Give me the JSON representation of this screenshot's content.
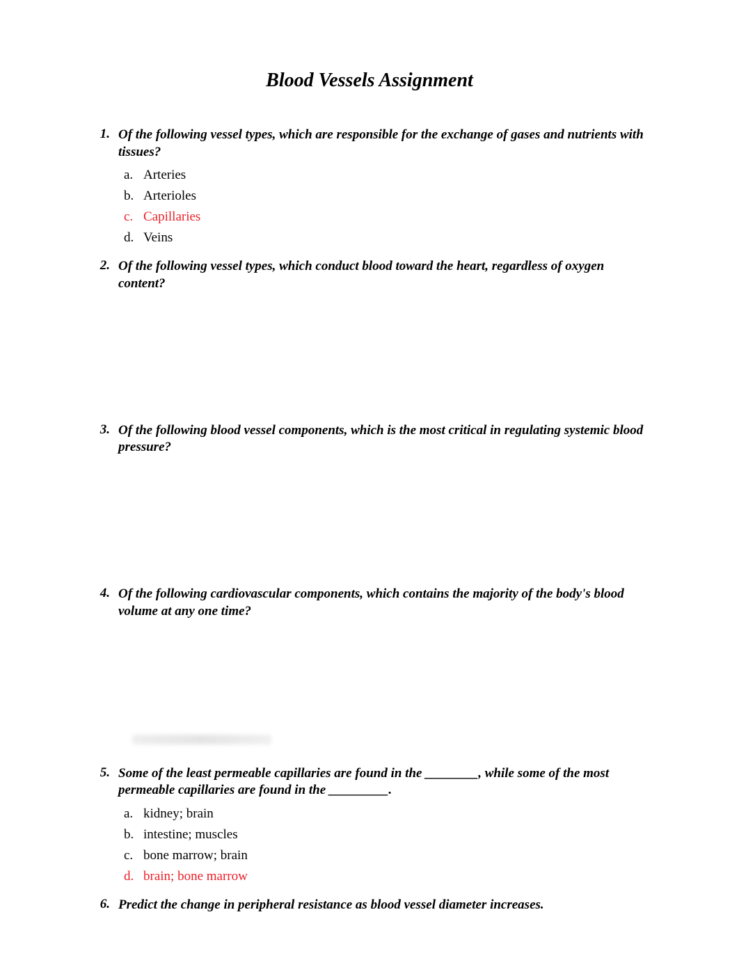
{
  "title": "Blood Vessels Assignment",
  "questions": [
    {
      "number": "1.",
      "text": "Of the following vessel types, which are responsible for the exchange of gases and nutrients with tissues?",
      "options": [
        {
          "letter": "a.",
          "text": "Arteries",
          "isAnswer": false
        },
        {
          "letter": "b.",
          "text": "Arterioles",
          "isAnswer": false
        },
        {
          "letter": "c.",
          "text": "Capillaries",
          "isAnswer": true
        },
        {
          "letter": "d.",
          "text": "Veins",
          "isAnswer": false
        }
      ],
      "spacerAfter": "small"
    },
    {
      "number": "2.",
      "text": "Of the following vessel types, which conduct blood toward the heart, regardless of oxygen content?",
      "options": [],
      "spacerAfter": "large"
    },
    {
      "number": "3.",
      "text": "Of the following blood vessel components, which is the most critical in regulating systemic blood pressure?",
      "options": [],
      "spacerAfter": "large"
    },
    {
      "number": "4.",
      "text": "Of the following cardiovascular components, which contains the majority of the body's blood volume at any one time?",
      "options": [],
      "spacerAfter": "medium",
      "blurAfter": true
    },
    {
      "number": "5.",
      "text": "Some of the least permeable capillaries are found in the ________, while some of the most permeable capillaries are found in the _________.",
      "options": [
        {
          "letter": "a.",
          "text": "kidney; brain",
          "isAnswer": false
        },
        {
          "letter": "b.",
          "text": "intestine; muscles",
          "isAnswer": false
        },
        {
          "letter": "c.",
          "text": "bone marrow; brain",
          "isAnswer": false
        },
        {
          "letter": "d.",
          "text": "brain; bone marrow",
          "isAnswer": true
        }
      ],
      "spacerAfter": "small"
    },
    {
      "number": "6.",
      "text": "Predict the change in peripheral resistance as blood vessel diameter increases.",
      "options": [],
      "spacerAfter": "none"
    }
  ],
  "colors": {
    "answer": "#eb2028",
    "text": "#000000",
    "background": "#ffffff"
  },
  "typography": {
    "title_fontsize": 28,
    "question_fontsize": 19,
    "option_fontsize": 19,
    "font_family": "Times New Roman"
  }
}
